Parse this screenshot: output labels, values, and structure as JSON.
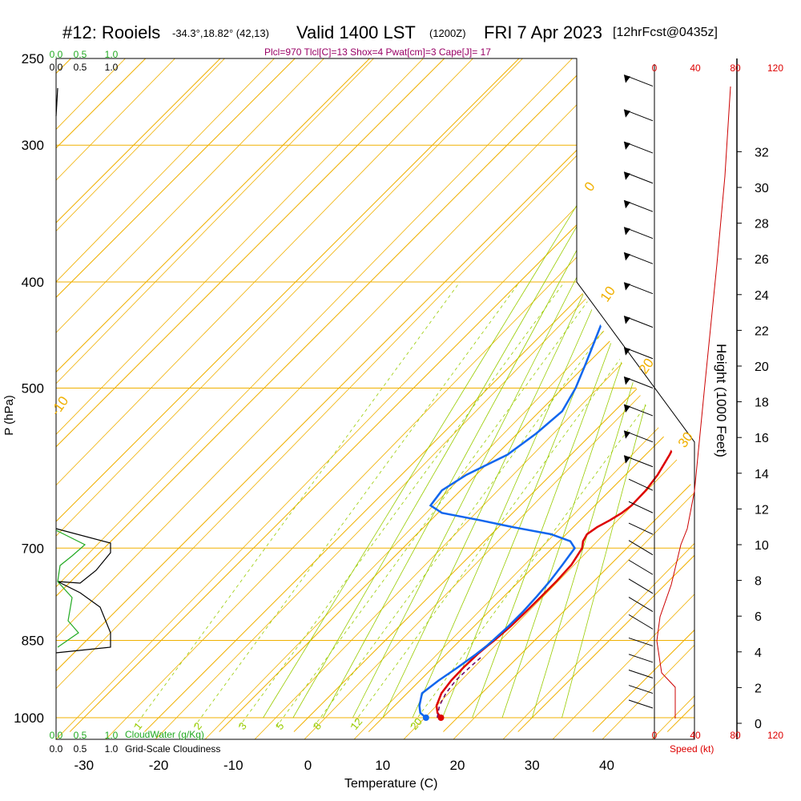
{
  "header": {
    "station": "#12: Rooiels",
    "coords": "-34.3°,18.82° (42,13)",
    "valid": "Valid 1400 LST",
    "utc": "(1200Z)",
    "date": "FRI 7 Apr 2023",
    "forecast": "[12hrFcst@0435z]",
    "params": "Plcl=970 Tlcl[C]=13 Shox=4 Pwat[cm]=3 Cape[J]= 17"
  },
  "labels": {
    "y_left": "P (hPa)",
    "y_right": "Height (1000 Feet)",
    "x": "Temperature (C)",
    "speed": "Speed (kt)",
    "cloudwater": "CloudWater (g/Kg)",
    "cloudiness": "Grid-Scale Cloudiness"
  },
  "colors": {
    "isobar": "#f0b000",
    "isotherm": "#f0b000",
    "dry_adiabat": "#f0b000",
    "moist_adiabat": "#99cc00",
    "mixing_ratio": "#99cc00",
    "temperature": "#dd0000",
    "dewpoint": "#1166ee",
    "cloudwater": "#22aa22",
    "wind_speed": "#cc0000"
  },
  "chart_data": {
    "type": "line",
    "subtype": "skew-T log-P sounding",
    "pressure_ticks": [
      250,
      300,
      400,
      500,
      700,
      850,
      1000
    ],
    "temperature_ticks": [
      -30,
      -20,
      -10,
      0,
      10,
      20,
      30,
      40
    ],
    "xlim": [
      -33,
      47
    ],
    "ylim": [
      1020,
      250
    ],
    "height_ticks_kft": [
      0,
      2,
      4,
      6,
      8,
      10,
      12,
      14,
      16,
      18,
      20,
      22,
      24,
      26,
      28,
      30,
      32
    ],
    "speed_ticks_kt": [
      0,
      40,
      80,
      120
    ],
    "cloud_scale_ticks": [
      "0.0",
      "0.5",
      "1.0"
    ],
    "isotherm_labels": [
      "-10",
      "0",
      "10",
      "20",
      "30"
    ],
    "mixing_ratio_labels": [
      "1",
      "2",
      "3",
      "5",
      "8",
      "12",
      "20"
    ],
    "series": [
      {
        "key": "temperature",
        "pressure": [
          1000,
          990,
          975,
          950,
          925,
          900,
          875,
          860,
          850,
          825,
          800,
          775,
          750,
          725,
          700,
          690,
          680,
          670,
          660,
          650,
          640,
          620,
          600,
          575,
          550,
          525,
          500,
          475,
          450,
          425,
          400,
          375,
          350,
          325,
          300,
          275,
          265
        ],
        "values": [
          17.8,
          16.7,
          15.6,
          14.6,
          14.2,
          14.1,
          14.2,
          14.4,
          14.6,
          14.9,
          15.0,
          15.0,
          15.0,
          14.8,
          14.0,
          13.2,
          12.8,
          13.2,
          14.0,
          14.6,
          14.9,
          14.8,
          14.3,
          13.2,
          11.8,
          10.3,
          8.6,
          6.8,
          4.9,
          2.9,
          0.8,
          -1.1,
          -3.0,
          -5.3,
          -8.0,
          -11.5,
          -13.0
        ]
      },
      {
        "key": "dewpoint",
        "pressure": [
          1000,
          990,
          975,
          950,
          925,
          900,
          875,
          860,
          850,
          825,
          800,
          775,
          750,
          725,
          700,
          690,
          680,
          670,
          660,
          650,
          640,
          620,
          600,
          575,
          550,
          525,
          500,
          475,
          450,
          425,
          400,
          375,
          350,
          325,
          300,
          275,
          265
        ],
        "values": [
          15.8,
          14.4,
          13.3,
          12.0,
          12.5,
          13.3,
          14.0,
          14.3,
          14.4,
          14.6,
          14.6,
          14.4,
          14.1,
          13.6,
          13.0,
          11.5,
          8.0,
          2.0,
          -3.5,
          -9.5,
          -12.0,
          -12.5,
          -11.3,
          -8.5,
          -7.5,
          -7.0,
          -8.3,
          -10.2,
          -12.3,
          -14.5,
          -18.5,
          -21.5,
          -25.0,
          -29.0,
          -33.0,
          -36.0,
          -37.0
        ]
      }
    ],
    "surface_parcel": {
      "temperature": 17.8,
      "dewpoint": 15.8
    }
  }
}
